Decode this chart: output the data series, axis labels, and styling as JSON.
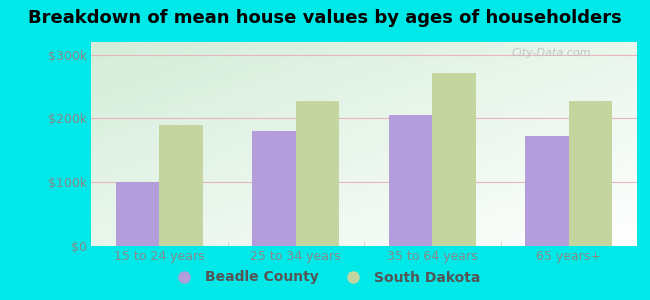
{
  "title": "Breakdown of mean house values by ages of householders",
  "categories": [
    "15 to 24 years",
    "25 to 34 years",
    "35 to 64 years",
    "65 years+"
  ],
  "beadle_values": [
    100000,
    180000,
    205000,
    172000
  ],
  "sd_values": [
    190000,
    228000,
    272000,
    228000
  ],
  "beadle_color": "#b39ddb",
  "sd_color": "#c5d5a0",
  "background_color": "#00e8e8",
  "plot_bg_color": "#e8f5e4",
  "yticks": [
    0,
    100000,
    200000,
    300000
  ],
  "ylabels": [
    "$0",
    "$100k",
    "$200k",
    "$300k"
  ],
  "ylim": [
    0,
    320000
  ],
  "legend_beadle": "Beadle County",
  "legend_sd": "South Dakota",
  "bar_width": 0.32,
  "title_fontsize": 13,
  "tick_fontsize": 9,
  "legend_fontsize": 10,
  "grid_color": "#e8b4c0",
  "watermark": "City-Data.com"
}
